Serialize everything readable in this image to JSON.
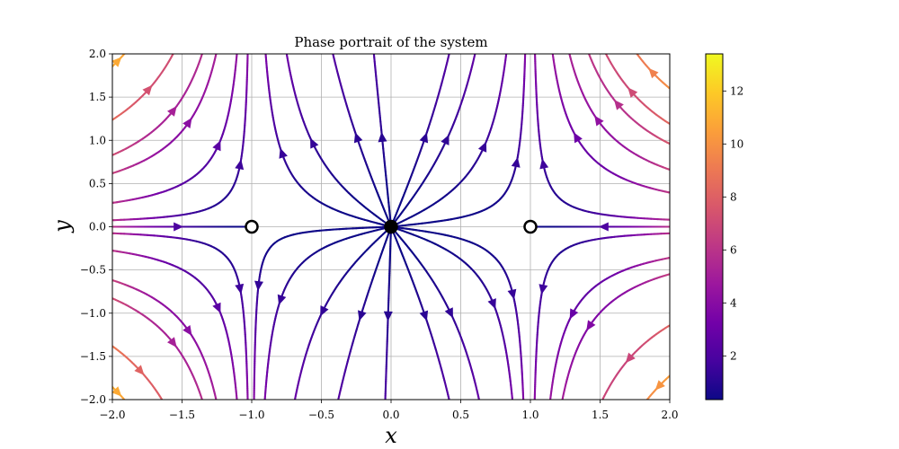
{
  "chart_data": {
    "type": "streamplot",
    "title": "Phase portrait of the system",
    "xlabel": "x",
    "ylabel": "y",
    "xlim": [
      -2.0,
      2.0
    ],
    "ylim": [
      -2.0,
      2.0
    ],
    "xticks": [
      "−2.0",
      "−1.5",
      "−1.0",
      "−0.5",
      "0.0",
      "0.5",
      "1.0",
      "1.5",
      "2.0"
    ],
    "xtick_values": [
      -2.0,
      -1.5,
      -1.0,
      -0.5,
      0.0,
      0.5,
      1.0,
      1.5,
      2.0
    ],
    "yticks": [
      "−2.0",
      "−1.5",
      "−1.0",
      "−0.5",
      "0.0",
      "0.5",
      "1.0",
      "1.5",
      "2.0"
    ],
    "ytick_values": [
      -2.0,
      -1.5,
      -1.0,
      -0.5,
      0.0,
      0.5,
      1.0,
      1.5,
      2.0
    ],
    "grid": true,
    "colormap": "plasma",
    "colorbar": {
      "range": [
        0.35,
        13.4
      ],
      "ticks": [
        2,
        4,
        6,
        8,
        10,
        12
      ],
      "tick_labels": [
        "2",
        "4",
        "6",
        "8",
        "10",
        "12"
      ]
    },
    "field": {
      "dx": "x*(1 - x^2)",
      "dy": "y*(1 + x^2)"
    },
    "equilibria": [
      {
        "x": 0.0,
        "y": 0.0,
        "marker": "filled"
      },
      {
        "x": -1.0,
        "y": 0.0,
        "marker": "open"
      },
      {
        "x": 1.0,
        "y": 0.0,
        "marker": "open"
      }
    ]
  },
  "colors": {
    "plasma_stops": [
      "#0d0887",
      "#46039f",
      "#7201a8",
      "#9c179e",
      "#bd3786",
      "#d8576b",
      "#ed7953",
      "#fb9f3a",
      "#fdca26",
      "#f0f921"
    ],
    "grid": "#b0b0b0",
    "axis": "#000000"
  }
}
